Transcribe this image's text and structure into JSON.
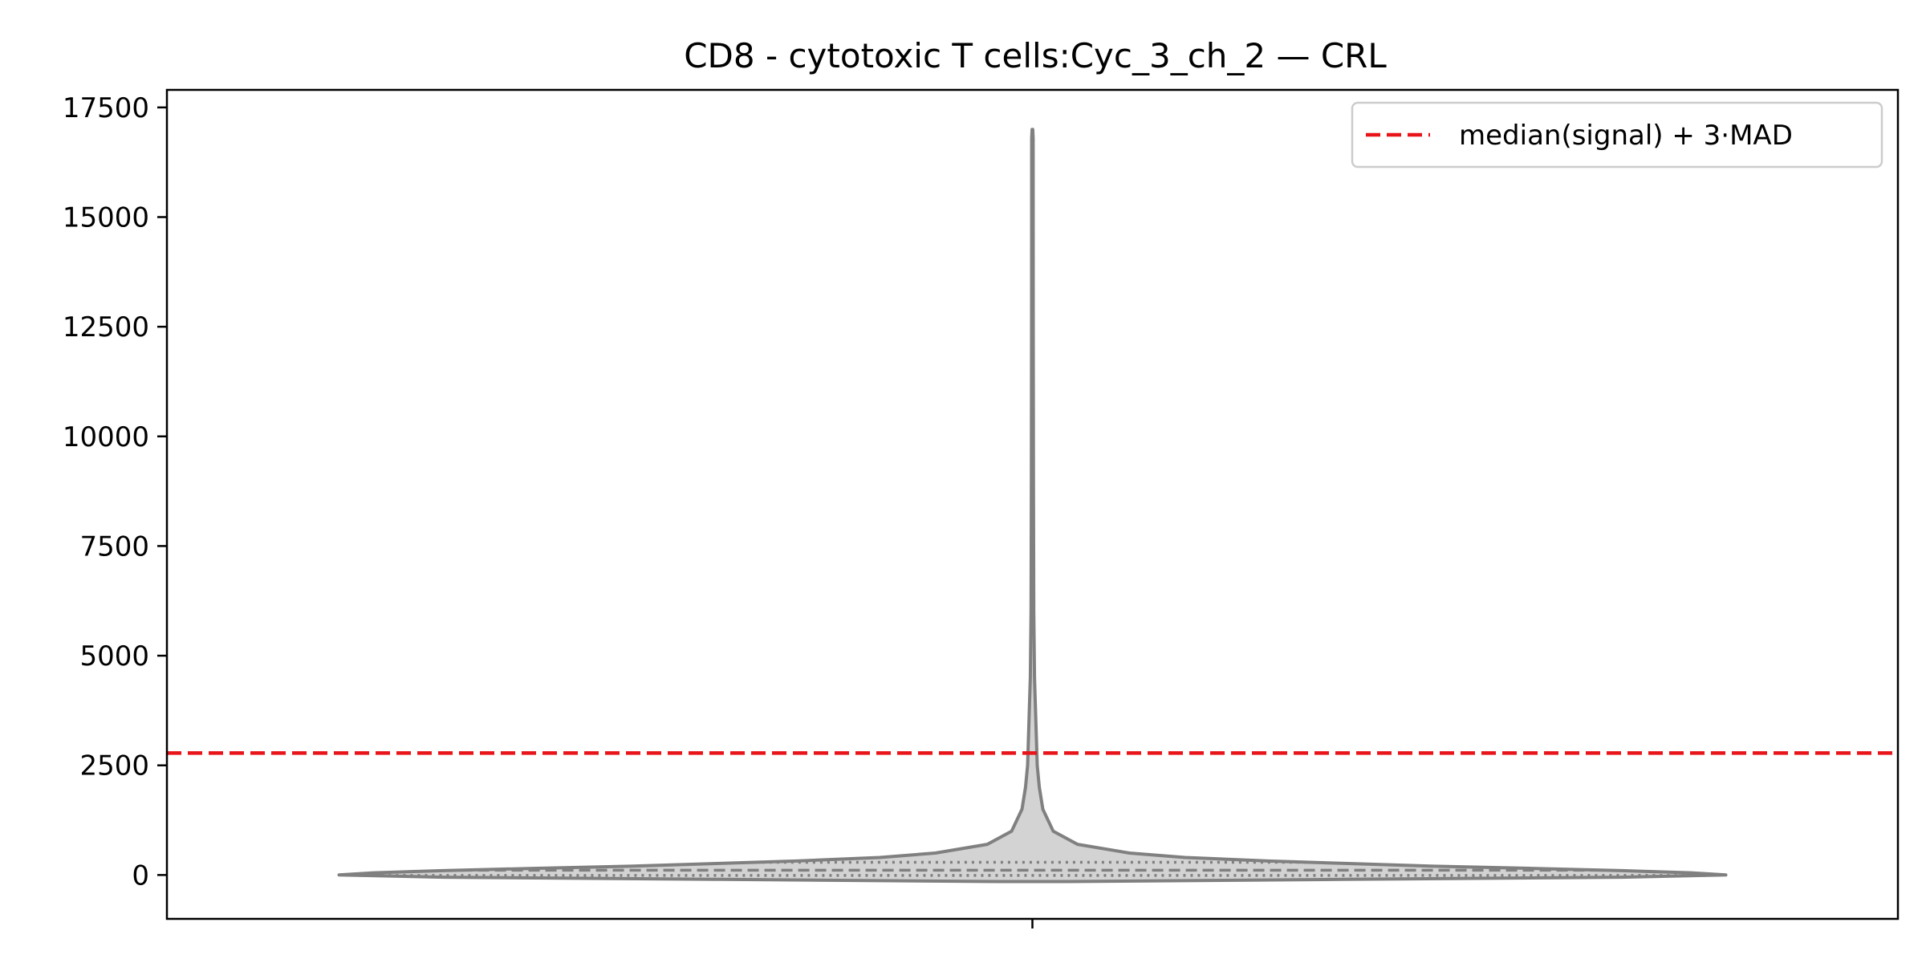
{
  "chart_data": {
    "type": "violin",
    "title": "CD8 - cytotoxic T cells:Cyc_3_ch_2 — CRL",
    "xlabel": "",
    "ylabel": "",
    "ylim": [
      -1000,
      17900
    ],
    "yticks": [
      0,
      2500,
      5000,
      7500,
      10000,
      12500,
      15000,
      17500
    ],
    "grid": false,
    "legend": {
      "placement": "top-right",
      "entries": [
        {
          "label": "median(signal) + 3·MAD",
          "style": "dashed",
          "color": "#e8141a"
        }
      ]
    },
    "threshold": {
      "label": "median(signal) + 3·MAD",
      "value": 2780,
      "color": "#e8141a",
      "style": "dashed"
    },
    "violin": {
      "min": -150,
      "max": 17000,
      "fill_color": "#d3d3d3",
      "edge_color": "#808080",
      "quartiles": [
        -10,
        110,
        290
      ],
      "density_profile": [
        {
          "y": -150,
          "w": 0.05
        },
        {
          "y": -100,
          "w": 0.45
        },
        {
          "y": -50,
          "w": 0.85
        },
        {
          "y": 0,
          "w": 1.0
        },
        {
          "y": 50,
          "w": 0.95
        },
        {
          "y": 100,
          "w": 0.85
        },
        {
          "y": 150,
          "w": 0.72
        },
        {
          "y": 200,
          "w": 0.58
        },
        {
          "y": 260,
          "w": 0.46
        },
        {
          "y": 320,
          "w": 0.34
        },
        {
          "y": 400,
          "w": 0.22
        },
        {
          "y": 500,
          "w": 0.14
        },
        {
          "y": 700,
          "w": 0.065
        },
        {
          "y": 1000,
          "w": 0.03
        },
        {
          "y": 1500,
          "w": 0.015
        },
        {
          "y": 2000,
          "w": 0.01
        },
        {
          "y": 2500,
          "w": 0.007
        },
        {
          "y": 3500,
          "w": 0.005
        },
        {
          "y": 4500,
          "w": 0.003
        },
        {
          "y": 6000,
          "w": 0.002
        },
        {
          "y": 9000,
          "w": 0.0015
        },
        {
          "y": 13000,
          "w": 0.0012
        },
        {
          "y": 16800,
          "w": 0.001
        },
        {
          "y": 17000,
          "w": 0.0005
        }
      ]
    }
  }
}
